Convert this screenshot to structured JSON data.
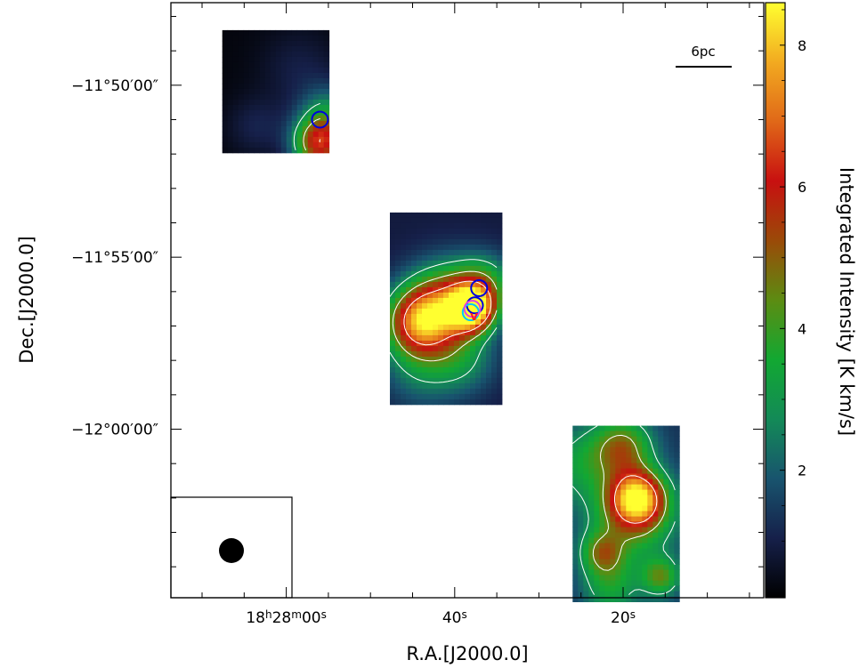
{
  "chart_data": {
    "type": "heatmap",
    "xlabel": "R.A.[J2000.0]",
    "ylabel": "Dec.[J2000.0]",
    "x_ticks": [
      {
        "ra_s": 60,
        "label_hms": [
          "18",
          "h",
          "28",
          "m",
          "00",
          "s"
        ]
      },
      {
        "ra_s": 40,
        "label_hms": [
          "",
          "",
          "",
          "",
          "40",
          "s"
        ]
      },
      {
        "ra_s": 20,
        "label_hms": [
          "",
          "",
          "",
          "",
          "20",
          "s"
        ]
      }
    ],
    "y_ticks": [
      {
        "dec_arcmin": -710,
        "label": "−11°50′00″"
      },
      {
        "dec_arcmin": -715,
        "label": "−11°55′00″"
      },
      {
        "dec_arcmin": -720,
        "label": "−12°00′00″"
      }
    ],
    "xlim_ra_s": [
      73.7,
      3.3
    ],
    "ylim_dec_arcmin": [
      -724.9,
      -707.6
    ],
    "colorbar": {
      "label": "Integrated Intensity [K km/s]",
      "range": [
        0.2,
        8.6
      ],
      "ticks": [
        2,
        4,
        6,
        8
      ],
      "colormap": [
        "#000000",
        "#16204a",
        "#18546e",
        "#138a57",
        "#12a832",
        "#5c8c12",
        "#9a4a08",
        "#c81010",
        "#e06818",
        "#f2aa20",
        "#ffff30"
      ]
    },
    "scale_bar": {
      "label": "6pc"
    },
    "beam": {
      "shape": "circle",
      "color": "#000000"
    },
    "fields": [
      {
        "name": "field-1",
        "ra_range_s": [
          67.6,
          55.5
        ],
        "dec_range_arcmin": [
          -708.4,
          -711.9
        ],
        "peaks": [
          {
            "ra_s": 56.0,
            "dec_arcmin": -711.7,
            "amp": 5.5,
            "sigma_arcmin": 0.55
          },
          {
            "ra_s": 55.0,
            "dec_arcmin": -710.8,
            "amp": 2.0,
            "sigma_arcmin": 0.6
          },
          {
            "ra_s": 63.5,
            "dec_arcmin": -711.2,
            "amp": 0.7,
            "sigma_arcmin": 0.6
          },
          {
            "ra_s": 58.5,
            "dec_arcmin": -709.5,
            "amp": 0.6,
            "sigma_arcmin": 0.8
          }
        ],
        "background": 0.35
      },
      {
        "name": "field-2",
        "ra_range_s": [
          47.7,
          34.7
        ],
        "dec_range_arcmin": [
          -713.7,
          -719.2
        ],
        "peaks": [
          {
            "ra_s": 44.2,
            "dec_arcmin": -716.9,
            "amp": 5.5,
            "sigma_arcmin": 0.7
          },
          {
            "ra_s": 40.8,
            "dec_arcmin": -716.3,
            "amp": 4.0,
            "sigma_arcmin": 0.8
          },
          {
            "ra_s": 38.0,
            "dec_arcmin": -716.5,
            "amp": 6.5,
            "sigma_arcmin": 0.45
          },
          {
            "ra_s": 36.5,
            "dec_arcmin": -715.8,
            "amp": 2.5,
            "sigma_arcmin": 0.6
          },
          {
            "ra_s": 39.0,
            "dec_arcmin": -718.0,
            "amp": 1.6,
            "sigma_arcmin": 0.7
          },
          {
            "ra_s": 44.0,
            "dec_arcmin": -718.3,
            "amp": 1.4,
            "sigma_arcmin": 0.8
          }
        ],
        "background": 0.9
      },
      {
        "name": "field-3",
        "ra_range_s": [
          26.0,
          13.7
        ],
        "dec_range_arcmin": [
          -719.9,
          -724.9
        ],
        "peaks": [
          {
            "ra_s": 18.3,
            "dec_arcmin": -722.0,
            "amp": 5.8,
            "sigma_arcmin": 0.55
          },
          {
            "ra_s": 18.8,
            "dec_arcmin": -722.6,
            "amp": 2.8,
            "sigma_arcmin": 0.9
          },
          {
            "ra_s": 20.0,
            "dec_arcmin": -720.5,
            "amp": 3.2,
            "sigma_arcmin": 0.6
          },
          {
            "ra_s": 15.5,
            "dec_arcmin": -724.3,
            "amp": 2.8,
            "sigma_arcmin": 0.4
          },
          {
            "ra_s": 22.5,
            "dec_arcmin": -723.6,
            "amp": 2.6,
            "sigma_arcmin": 0.45
          },
          {
            "ra_s": 25.0,
            "dec_arcmin": -721.0,
            "amp": 1.8,
            "sigma_arcmin": 0.8
          },
          {
            "ra_s": 21.5,
            "dec_arcmin": -724.6,
            "amp": 2.0,
            "sigma_arcmin": 0.6
          }
        ],
        "background": 1.3
      }
    ],
    "contour_levels": [
      2.8,
      4.5,
      6.5
    ],
    "markers": [
      {
        "ra_s": 56.0,
        "dec_arcmin": -711.0,
        "color": "#0000dd"
      },
      {
        "ra_s": 37.1,
        "dec_arcmin": -715.9,
        "color": "#0000dd"
      },
      {
        "ra_s": 37.6,
        "dec_arcmin": -716.4,
        "color": "#0000dd"
      },
      {
        "ra_s": 38.1,
        "dec_arcmin": -716.6,
        "color": "#00c8ff"
      },
      {
        "ra_s": 37.9,
        "dec_arcmin": -716.5,
        "color": "#e040e0"
      }
    ],
    "source_marker": {
      "ra_s": 37.7,
      "dec_arcmin": -716.7,
      "label": "v",
      "color": "#ff2020"
    }
  }
}
